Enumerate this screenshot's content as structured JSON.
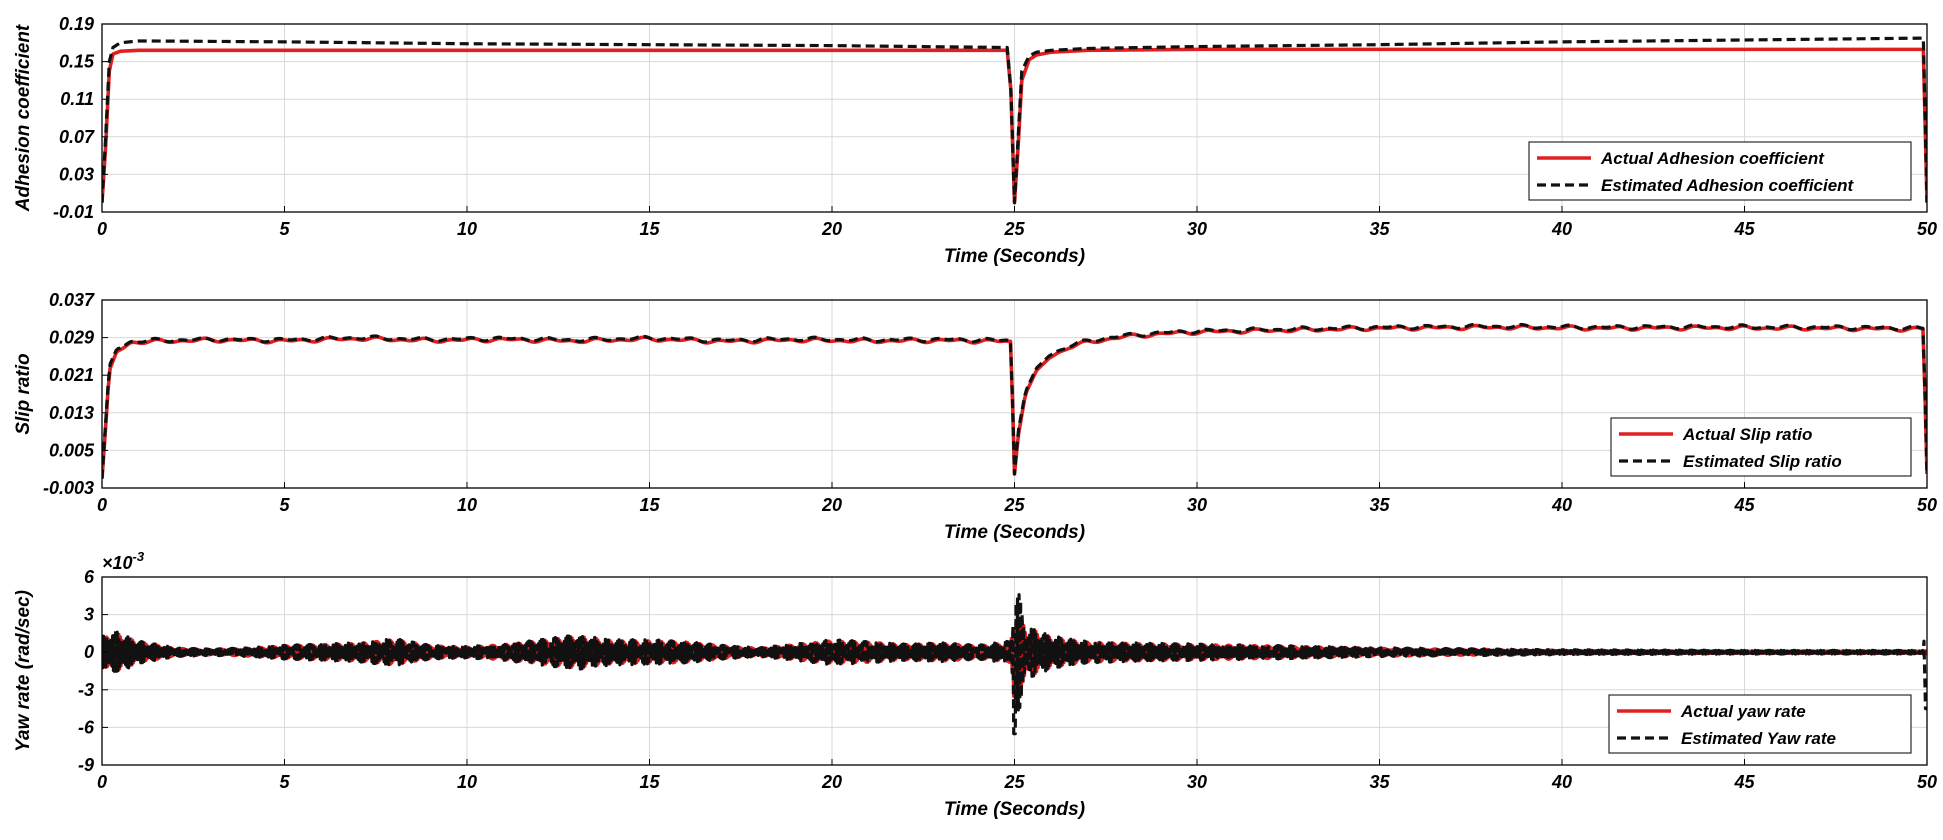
{
  "chart_data": [
    {
      "type": "line",
      "xlabel": "Time (Seconds)",
      "ylabel": "Adhesion coefficient",
      "xlim": [
        0,
        50
      ],
      "ylim": [
        -0.01,
        0.19
      ],
      "xticks": [
        "0",
        "5",
        "10",
        "15",
        "20",
        "25",
        "30",
        "35",
        "40",
        "45",
        "50"
      ],
      "yticks": [
        "-0.01",
        "0.03",
        "0.07",
        "0.11",
        "0.15",
        "0.19"
      ],
      "ytick_values": [
        -0.01,
        0.03,
        0.07,
        0.11,
        0.15,
        0.19
      ],
      "grid": true,
      "legend_position": "bottom-right",
      "exponent_label": "",
      "series": [
        {
          "name": "Actual Adhesion coefficient",
          "color": "#e02020",
          "style": "solid",
          "x": [
            0,
            0.1,
            0.2,
            0.3,
            0.5,
            1,
            5,
            10,
            15,
            20,
            24.8,
            24.9,
            25.0,
            25.1,
            25.2,
            25.4,
            25.6,
            26,
            27,
            30,
            35,
            40,
            45,
            49.9,
            50
          ],
          "y": [
            0.0,
            0.06,
            0.14,
            0.158,
            0.161,
            0.162,
            0.162,
            0.162,
            0.162,
            0.162,
            0.162,
            0.12,
            0.0,
            0.06,
            0.13,
            0.152,
            0.157,
            0.16,
            0.162,
            0.163,
            0.163,
            0.163,
            0.163,
            0.163,
            0.0
          ]
        },
        {
          "name": "Estimated Adhesion coefficient",
          "color": "#111111",
          "style": "dashed",
          "x": [
            0,
            0.1,
            0.2,
            0.3,
            0.5,
            1,
            5,
            10,
            15,
            20,
            24.8,
            24.9,
            25.0,
            25.1,
            25.2,
            25.4,
            25.6,
            26,
            27,
            30,
            35,
            40,
            45,
            49.9,
            50
          ],
          "y": [
            0.0,
            0.07,
            0.15,
            0.165,
            0.17,
            0.172,
            0.171,
            0.169,
            0.168,
            0.167,
            0.165,
            0.12,
            0.0,
            0.07,
            0.14,
            0.156,
            0.16,
            0.162,
            0.164,
            0.166,
            0.168,
            0.171,
            0.173,
            0.175,
            0.0
          ]
        }
      ]
    },
    {
      "type": "line",
      "xlabel": "Time (Seconds)",
      "ylabel": "Slip ratio",
      "xlim": [
        0,
        50
      ],
      "ylim": [
        -0.003,
        0.037
      ],
      "xticks": [
        "0",
        "5",
        "10",
        "15",
        "20",
        "25",
        "30",
        "35",
        "40",
        "45",
        "50"
      ],
      "yticks": [
        "-0.003",
        "0.005",
        "0.013",
        "0.021",
        "0.029",
        "0.037"
      ],
      "ytick_values": [
        -0.003,
        0.005,
        0.013,
        0.021,
        0.029,
        0.037
      ],
      "grid": true,
      "legend_position": "bottom-right",
      "exponent_label": "",
      "series": [
        {
          "name": "Actual Slip ratio",
          "color": "#e02020",
          "style": "solid",
          "x": [
            0,
            0.1,
            0.2,
            0.4,
            0.8,
            1.5,
            3,
            5,
            7,
            9,
            11,
            13,
            15,
            17,
            19,
            21,
            23,
            24.9,
            25.0,
            25.1,
            25.3,
            25.6,
            26,
            26.5,
            27,
            28,
            29,
            30,
            32,
            35,
            38,
            41,
            44,
            47,
            49.9,
            50
          ],
          "y": [
            -0.001,
            0.01,
            0.022,
            0.026,
            0.028,
            0.0282,
            0.0285,
            0.0283,
            0.0288,
            0.0284,
            0.0286,
            0.0283,
            0.0287,
            0.0282,
            0.0285,
            0.0283,
            0.0284,
            0.0282,
            0.0,
            0.008,
            0.017,
            0.022,
            0.025,
            0.027,
            0.028,
            0.0292,
            0.0298,
            0.0302,
            0.0305,
            0.031,
            0.0312,
            0.031,
            0.0311,
            0.031,
            0.0308,
            0.0
          ]
        },
        {
          "name": "Estimated Slip ratio",
          "color": "#111111",
          "style": "dashed",
          "x": [
            0,
            0.1,
            0.2,
            0.4,
            0.8,
            1.5,
            3,
            5,
            7,
            9,
            11,
            13,
            15,
            17,
            19,
            21,
            23,
            24.9,
            25.0,
            25.1,
            25.3,
            25.6,
            26,
            26.5,
            27,
            28,
            29,
            30,
            32,
            35,
            38,
            41,
            44,
            47,
            49.9,
            50
          ],
          "y": [
            -0.001,
            0.011,
            0.023,
            0.0265,
            0.0282,
            0.0284,
            0.0286,
            0.0285,
            0.029,
            0.0286,
            0.0288,
            0.0285,
            0.0289,
            0.0284,
            0.0287,
            0.0285,
            0.0286,
            0.0284,
            0.0,
            0.009,
            0.0175,
            0.0225,
            0.0255,
            0.0272,
            0.0283,
            0.0294,
            0.03,
            0.0304,
            0.0307,
            0.0312,
            0.0314,
            0.0312,
            0.0313,
            0.0312,
            0.031,
            0.0
          ]
        }
      ]
    },
    {
      "type": "line",
      "xlabel": "Time (Seconds)",
      "ylabel": "Yaw rate (rad/sec)",
      "xlim": [
        0,
        50
      ],
      "ylim": [
        -9,
        6
      ],
      "xticks": [
        "0",
        "5",
        "10",
        "15",
        "20",
        "25",
        "30",
        "35",
        "40",
        "45",
        "50"
      ],
      "yticks": [
        "-9",
        "-6",
        "-3",
        "0",
        "3",
        "6"
      ],
      "ytick_values": [
        -9,
        -6,
        -3,
        0,
        3,
        6
      ],
      "grid": true,
      "legend_position": "bottom-right",
      "exponent_label": "×10",
      "exponent_power": "-3",
      "series": [
        {
          "name": "Actual yaw rate",
          "color": "#e02020",
          "style": "solid",
          "envelope_t": [
            0,
            0.3,
            1,
            2,
            3,
            4,
            5,
            6,
            7,
            8,
            9,
            10,
            11,
            12,
            13,
            14,
            15,
            16,
            17,
            18,
            19,
            20,
            21,
            22,
            23,
            24,
            24.9,
            25.0,
            25.3,
            26,
            27,
            28,
            30,
            32,
            35,
            40,
            45,
            49.9,
            50
          ],
          "envelope_amp": [
            1.0,
            1.6,
            0.8,
            0.3,
            0.2,
            0.3,
            0.5,
            0.6,
            0.7,
            1.0,
            0.5,
            0.4,
            0.6,
            0.9,
            1.3,
            0.9,
            0.9,
            0.8,
            0.5,
            0.3,
            0.6,
            0.9,
            0.8,
            0.6,
            0.7,
            0.5,
            0.8,
            3.6,
            2.0,
            1.2,
            0.8,
            0.7,
            0.6,
            0.5,
            0.3,
            0.15,
            0.1,
            0.1,
            0.1
          ]
        },
        {
          "name": "Estimated Yaw rate",
          "color": "#111111",
          "style": "dashed",
          "envelope_t": [
            0,
            0.3,
            1,
            2,
            3,
            4,
            5,
            6,
            7,
            8,
            9,
            10,
            11,
            12,
            13,
            14,
            15,
            16,
            17,
            18,
            19,
            20,
            21,
            22,
            23,
            24,
            24.9,
            25.0,
            25.3,
            26,
            27,
            28,
            30,
            32,
            35,
            40,
            45,
            49.9,
            50
          ],
          "envelope_amp": [
            1.2,
            1.8,
            0.9,
            0.35,
            0.25,
            0.35,
            0.55,
            0.65,
            0.75,
            1.1,
            0.55,
            0.45,
            0.65,
            1.0,
            1.4,
            1.0,
            1.0,
            0.85,
            0.55,
            0.35,
            0.65,
            1.0,
            0.85,
            0.65,
            0.75,
            0.55,
            0.9,
            6.5,
            2.2,
            1.3,
            0.85,
            0.75,
            0.65,
            0.55,
            0.35,
            0.2,
            0.15,
            0.15,
            4.5
          ]
        }
      ]
    }
  ]
}
